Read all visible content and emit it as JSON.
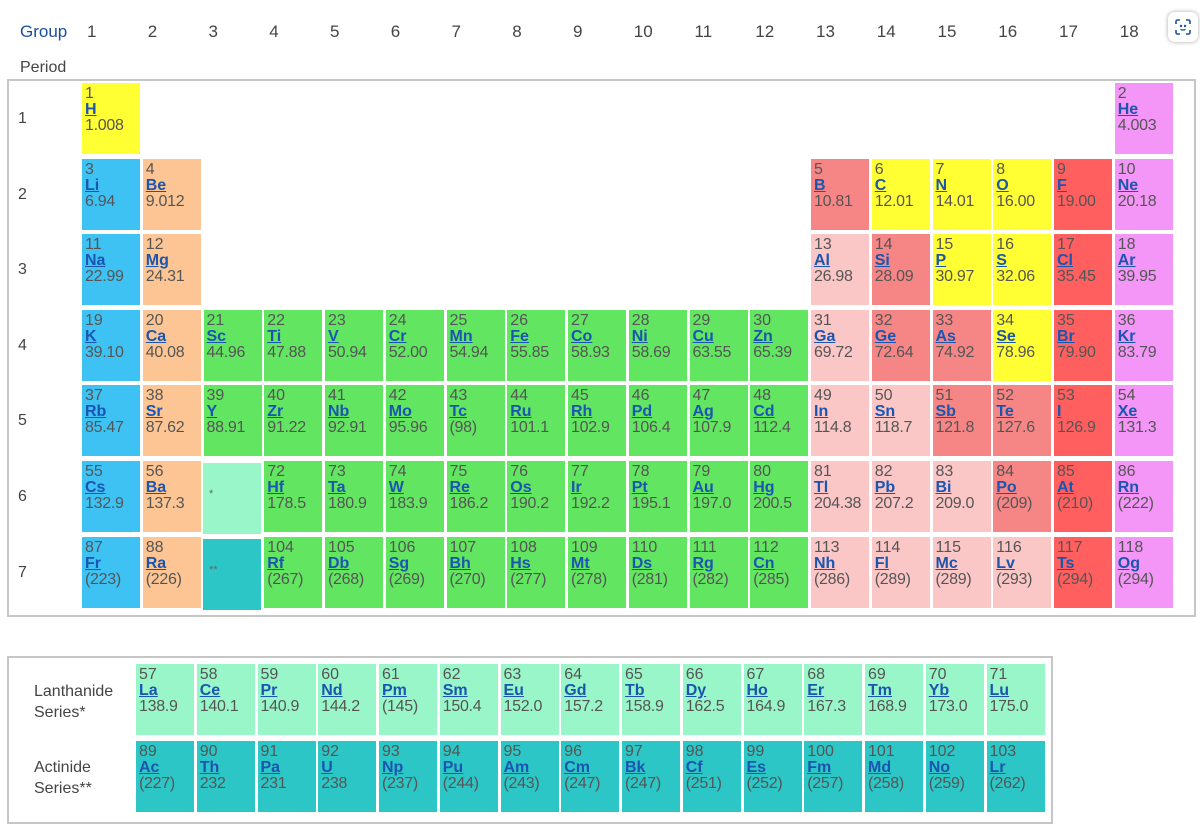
{
  "header": {
    "group_label": "Group",
    "groups": [
      "1",
      "2",
      "3",
      "4",
      "5",
      "6",
      "7",
      "8",
      "9",
      "10",
      "11",
      "12",
      "13",
      "14",
      "15",
      "16",
      "17",
      "18"
    ],
    "period_label": "Period",
    "periods": [
      "1",
      "2",
      "3",
      "4",
      "5",
      "6",
      "7"
    ]
  },
  "placeholders": {
    "lanthanide_mark": "*",
    "actinide_mark": "**"
  },
  "series_labels": {
    "lanthanide": [
      "Lanthanide",
      "Series*"
    ],
    "actinide": [
      "Actinide",
      "Series**"
    ]
  },
  "colors": {
    "alkali": "#3ec2f3",
    "alkaline_earth": "#fcc593",
    "transition": "#62e561",
    "post_transition": "#fbc6c6",
    "metalloid": "#f68685",
    "nonmetal": "#ffff33",
    "halogen": "#ff5f5f",
    "noble_gas": "#f496f7",
    "lanthanide": "#99f6c8",
    "actinide": "#2dc6c6",
    "link": "#1a55b0"
  },
  "toolbar": {
    "scan_icon": "scan-icon"
  },
  "elements": [
    {
      "n": "1",
      "s": "H",
      "m": "1.008",
      "g": 1,
      "p": 1,
      "c": "nonmetal"
    },
    {
      "n": "2",
      "s": "He",
      "m": "4.003",
      "g": 18,
      "p": 1,
      "c": "noble_gas"
    },
    {
      "n": "3",
      "s": "Li",
      "m": "6.94",
      "g": 1,
      "p": 2,
      "c": "alkali"
    },
    {
      "n": "4",
      "s": "Be",
      "m": "9.012",
      "g": 2,
      "p": 2,
      "c": "alkaline_earth"
    },
    {
      "n": "5",
      "s": "B",
      "m": "10.81",
      "g": 13,
      "p": 2,
      "c": "metalloid"
    },
    {
      "n": "6",
      "s": "C",
      "m": "12.01",
      "g": 14,
      "p": 2,
      "c": "nonmetal"
    },
    {
      "n": "7",
      "s": "N",
      "m": "14.01",
      "g": 15,
      "p": 2,
      "c": "nonmetal"
    },
    {
      "n": "8",
      "s": "O",
      "m": "16.00",
      "g": 16,
      "p": 2,
      "c": "nonmetal"
    },
    {
      "n": "9",
      "s": "F",
      "m": "19.00",
      "g": 17,
      "p": 2,
      "c": "halogen"
    },
    {
      "n": "10",
      "s": "Ne",
      "m": "20.18",
      "g": 18,
      "p": 2,
      "c": "noble_gas"
    },
    {
      "n": "11",
      "s": "Na",
      "m": "22.99",
      "g": 1,
      "p": 3,
      "c": "alkali"
    },
    {
      "n": "12",
      "s": "Mg",
      "m": "24.31",
      "g": 2,
      "p": 3,
      "c": "alkaline_earth"
    },
    {
      "n": "13",
      "s": "Al",
      "m": "26.98",
      "g": 13,
      "p": 3,
      "c": "post_transition"
    },
    {
      "n": "14",
      "s": "Si",
      "m": "28.09",
      "g": 14,
      "p": 3,
      "c": "metalloid"
    },
    {
      "n": "15",
      "s": "P",
      "m": "30.97",
      "g": 15,
      "p": 3,
      "c": "nonmetal"
    },
    {
      "n": "16",
      "s": "S",
      "m": "32.06",
      "g": 16,
      "p": 3,
      "c": "nonmetal"
    },
    {
      "n": "17",
      "s": "Cl",
      "m": "35.45",
      "g": 17,
      "p": 3,
      "c": "halogen"
    },
    {
      "n": "18",
      "s": "Ar",
      "m": "39.95",
      "g": 18,
      "p": 3,
      "c": "noble_gas"
    },
    {
      "n": "19",
      "s": "K",
      "m": "39.10",
      "g": 1,
      "p": 4,
      "c": "alkali"
    },
    {
      "n": "20",
      "s": "Ca",
      "m": "40.08",
      "g": 2,
      "p": 4,
      "c": "alkaline_earth"
    },
    {
      "n": "21",
      "s": "Sc",
      "m": "44.96",
      "g": 3,
      "p": 4,
      "c": "transition"
    },
    {
      "n": "22",
      "s": "Ti",
      "m": "47.88",
      "g": 4,
      "p": 4,
      "c": "transition"
    },
    {
      "n": "23",
      "s": "V",
      "m": "50.94",
      "g": 5,
      "p": 4,
      "c": "transition"
    },
    {
      "n": "24",
      "s": "Cr",
      "m": "52.00",
      "g": 6,
      "p": 4,
      "c": "transition"
    },
    {
      "n": "25",
      "s": "Mn",
      "m": "54.94",
      "g": 7,
      "p": 4,
      "c": "transition"
    },
    {
      "n": "26",
      "s": "Fe",
      "m": "55.85",
      "g": 8,
      "p": 4,
      "c": "transition"
    },
    {
      "n": "27",
      "s": "Co",
      "m": "58.93",
      "g": 9,
      "p": 4,
      "c": "transition"
    },
    {
      "n": "28",
      "s": "Ni",
      "m": "58.69",
      "g": 10,
      "p": 4,
      "c": "transition"
    },
    {
      "n": "29",
      "s": "Cu",
      "m": "63.55",
      "g": 11,
      "p": 4,
      "c": "transition"
    },
    {
      "n": "30",
      "s": "Zn",
      "m": "65.39",
      "g": 12,
      "p": 4,
      "c": "transition"
    },
    {
      "n": "31",
      "s": "Ga",
      "m": "69.72",
      "g": 13,
      "p": 4,
      "c": "post_transition"
    },
    {
      "n": "32",
      "s": "Ge",
      "m": "72.64",
      "g": 14,
      "p": 4,
      "c": "metalloid"
    },
    {
      "n": "33",
      "s": "As",
      "m": "74.92",
      "g": 15,
      "p": 4,
      "c": "metalloid"
    },
    {
      "n": "34",
      "s": "Se",
      "m": "78.96",
      "g": 16,
      "p": 4,
      "c": "nonmetal"
    },
    {
      "n": "35",
      "s": "Br",
      "m": "79.90",
      "g": 17,
      "p": 4,
      "c": "halogen"
    },
    {
      "n": "36",
      "s": "Kr",
      "m": "83.79",
      "g": 18,
      "p": 4,
      "c": "noble_gas"
    },
    {
      "n": "37",
      "s": "Rb",
      "m": "85.47",
      "g": 1,
      "p": 5,
      "c": "alkali"
    },
    {
      "n": "38",
      "s": "Sr",
      "m": "87.62",
      "g": 2,
      "p": 5,
      "c": "alkaline_earth"
    },
    {
      "n": "39",
      "s": "Y",
      "m": "88.91",
      "g": 3,
      "p": 5,
      "c": "transition"
    },
    {
      "n": "40",
      "s": "Zr",
      "m": "91.22",
      "g": 4,
      "p": 5,
      "c": "transition"
    },
    {
      "n": "41",
      "s": "Nb",
      "m": "92.91",
      "g": 5,
      "p": 5,
      "c": "transition"
    },
    {
      "n": "42",
      "s": "Mo",
      "m": "95.96",
      "g": 6,
      "p": 5,
      "c": "transition"
    },
    {
      "n": "43",
      "s": "Tc",
      "m": "(98)",
      "g": 7,
      "p": 5,
      "c": "transition"
    },
    {
      "n": "44",
      "s": "Ru",
      "m": "101.1",
      "g": 8,
      "p": 5,
      "c": "transition"
    },
    {
      "n": "45",
      "s": "Rh",
      "m": "102.9",
      "g": 9,
      "p": 5,
      "c": "transition"
    },
    {
      "n": "46",
      "s": "Pd",
      "m": "106.4",
      "g": 10,
      "p": 5,
      "c": "transition"
    },
    {
      "n": "47",
      "s": "Ag",
      "m": "107.9",
      "g": 11,
      "p": 5,
      "c": "transition"
    },
    {
      "n": "48",
      "s": "Cd",
      "m": "112.4",
      "g": 12,
      "p": 5,
      "c": "transition"
    },
    {
      "n": "49",
      "s": "In",
      "m": "114.8",
      "g": 13,
      "p": 5,
      "c": "post_transition"
    },
    {
      "n": "50",
      "s": "Sn",
      "m": "118.7",
      "g": 14,
      "p": 5,
      "c": "post_transition"
    },
    {
      "n": "51",
      "s": "Sb",
      "m": "121.8",
      "g": 15,
      "p": 5,
      "c": "metalloid"
    },
    {
      "n": "52",
      "s": "Te",
      "m": "127.6",
      "g": 16,
      "p": 5,
      "c": "metalloid"
    },
    {
      "n": "53",
      "s": "I",
      "m": "126.9",
      "g": 17,
      "p": 5,
      "c": "halogen"
    },
    {
      "n": "54",
      "s": "Xe",
      "m": "131.3",
      "g": 18,
      "p": 5,
      "c": "noble_gas"
    },
    {
      "n": "55",
      "s": "Cs",
      "m": "132.9",
      "g": 1,
      "p": 6,
      "c": "alkali"
    },
    {
      "n": "56",
      "s": "Ba",
      "m": "137.3",
      "g": 2,
      "p": 6,
      "c": "alkaline_earth"
    },
    {
      "n": "72",
      "s": "Hf",
      "m": "178.5",
      "g": 4,
      "p": 6,
      "c": "transition"
    },
    {
      "n": "73",
      "s": "Ta",
      "m": "180.9",
      "g": 5,
      "p": 6,
      "c": "transition"
    },
    {
      "n": "74",
      "s": "W",
      "m": "183.9",
      "g": 6,
      "p": 6,
      "c": "transition"
    },
    {
      "n": "75",
      "s": "Re",
      "m": "186.2",
      "g": 7,
      "p": 6,
      "c": "transition"
    },
    {
      "n": "76",
      "s": "Os",
      "m": "190.2",
      "g": 8,
      "p": 6,
      "c": "transition"
    },
    {
      "n": "77",
      "s": "Ir",
      "m": "192.2",
      "g": 9,
      "p": 6,
      "c": "transition"
    },
    {
      "n": "78",
      "s": "Pt",
      "m": "195.1",
      "g": 10,
      "p": 6,
      "c": "transition"
    },
    {
      "n": "79",
      "s": "Au",
      "m": "197.0",
      "g": 11,
      "p": 6,
      "c": "transition"
    },
    {
      "n": "80",
      "s": "Hg",
      "m": "200.5",
      "g": 12,
      "p": 6,
      "c": "transition"
    },
    {
      "n": "81",
      "s": "Tl",
      "m": "204.38",
      "g": 13,
      "p": 6,
      "c": "post_transition"
    },
    {
      "n": "82",
      "s": "Pb",
      "m": "207.2",
      "g": 14,
      "p": 6,
      "c": "post_transition"
    },
    {
      "n": "83",
      "s": "Bi",
      "m": "209.0",
      "g": 15,
      "p": 6,
      "c": "post_transition"
    },
    {
      "n": "84",
      "s": "Po",
      "m": "(209)",
      "g": 16,
      "p": 6,
      "c": "metalloid"
    },
    {
      "n": "85",
      "s": "At",
      "m": "(210)",
      "g": 17,
      "p": 6,
      "c": "halogen"
    },
    {
      "n": "86",
      "s": "Rn",
      "m": "(222)",
      "g": 18,
      "p": 6,
      "c": "noble_gas"
    },
    {
      "n": "87",
      "s": "Fr",
      "m": "(223)",
      "g": 1,
      "p": 7,
      "c": "alkali"
    },
    {
      "n": "88",
      "s": "Ra",
      "m": "(226)",
      "g": 2,
      "p": 7,
      "c": "alkaline_earth"
    },
    {
      "n": "104",
      "s": "Rf",
      "m": "(267)",
      "g": 4,
      "p": 7,
      "c": "transition"
    },
    {
      "n": "105",
      "s": "Db",
      "m": "(268)",
      "g": 5,
      "p": 7,
      "c": "transition"
    },
    {
      "n": "106",
      "s": "Sg",
      "m": "(269)",
      "g": 6,
      "p": 7,
      "c": "transition"
    },
    {
      "n": "107",
      "s": "Bh",
      "m": "(270)",
      "g": 7,
      "p": 7,
      "c": "transition"
    },
    {
      "n": "108",
      "s": "Hs",
      "m": "(277)",
      "g": 8,
      "p": 7,
      "c": "transition"
    },
    {
      "n": "109",
      "s": "Mt",
      "m": "(278)",
      "g": 9,
      "p": 7,
      "c": "transition"
    },
    {
      "n": "110",
      "s": "Ds",
      "m": "(281)",
      "g": 10,
      "p": 7,
      "c": "transition"
    },
    {
      "n": "111",
      "s": "Rg",
      "m": "(282)",
      "g": 11,
      "p": 7,
      "c": "transition"
    },
    {
      "n": "112",
      "s": "Cn",
      "m": "(285)",
      "g": 12,
      "p": 7,
      "c": "transition"
    },
    {
      "n": "113",
      "s": "Nh",
      "m": "(286)",
      "g": 13,
      "p": 7,
      "c": "post_transition"
    },
    {
      "n": "114",
      "s": "Fl",
      "m": "(289)",
      "g": 14,
      "p": 7,
      "c": "post_transition"
    },
    {
      "n": "115",
      "s": "Mc",
      "m": "(289)",
      "g": 15,
      "p": 7,
      "c": "post_transition"
    },
    {
      "n": "116",
      "s": "Lv",
      "m": "(293)",
      "g": 16,
      "p": 7,
      "c": "post_transition"
    },
    {
      "n": "117",
      "s": "Ts",
      "m": "(294)",
      "g": 17,
      "p": 7,
      "c": "halogen"
    },
    {
      "n": "118",
      "s": "Og",
      "m": "(294)",
      "g": 18,
      "p": 7,
      "c": "noble_gas"
    }
  ],
  "lanthanides": [
    {
      "n": "57",
      "s": "La",
      "m": "138.9"
    },
    {
      "n": "58",
      "s": "Ce",
      "m": "140.1"
    },
    {
      "n": "59",
      "s": "Pr",
      "m": "140.9"
    },
    {
      "n": "60",
      "s": "Nd",
      "m": "144.2"
    },
    {
      "n": "61",
      "s": "Pm",
      "m": "(145)"
    },
    {
      "n": "62",
      "s": "Sm",
      "m": "150.4"
    },
    {
      "n": "63",
      "s": "Eu",
      "m": "152.0"
    },
    {
      "n": "64",
      "s": "Gd",
      "m": "157.2"
    },
    {
      "n": "65",
      "s": "Tb",
      "m": "158.9"
    },
    {
      "n": "66",
      "s": "Dy",
      "m": "162.5"
    },
    {
      "n": "67",
      "s": "Ho",
      "m": "164.9"
    },
    {
      "n": "68",
      "s": "Er",
      "m": "167.3"
    },
    {
      "n": "69",
      "s": "Tm",
      "m": "168.9"
    },
    {
      "n": "70",
      "s": "Yb",
      "m": "173.0"
    },
    {
      "n": "71",
      "s": "Lu",
      "m": "175.0"
    }
  ],
  "actinides": [
    {
      "n": "89",
      "s": "Ac",
      "m": "(227)"
    },
    {
      "n": "90",
      "s": "Th",
      "m": "232"
    },
    {
      "n": "91",
      "s": "Pa",
      "m": "231"
    },
    {
      "n": "92",
      "s": "U",
      "m": "238"
    },
    {
      "n": "93",
      "s": "Np",
      "m": "(237)"
    },
    {
      "n": "94",
      "s": "Pu",
      "m": "(244)"
    },
    {
      "n": "95",
      "s": "Am",
      "m": "(243)"
    },
    {
      "n": "96",
      "s": "Cm",
      "m": "(247)"
    },
    {
      "n": "97",
      "s": "Bk",
      "m": "(247)"
    },
    {
      "n": "98",
      "s": "Cf",
      "m": "(251)"
    },
    {
      "n": "99",
      "s": "Es",
      "m": "(252)"
    },
    {
      "n": "100",
      "s": "Fm",
      "m": "(257)"
    },
    {
      "n": "101",
      "s": "Md",
      "m": "(258)"
    },
    {
      "n": "102",
      "s": "No",
      "m": "(259)"
    },
    {
      "n": "103",
      "s": "Lr",
      "m": "(262)"
    }
  ]
}
